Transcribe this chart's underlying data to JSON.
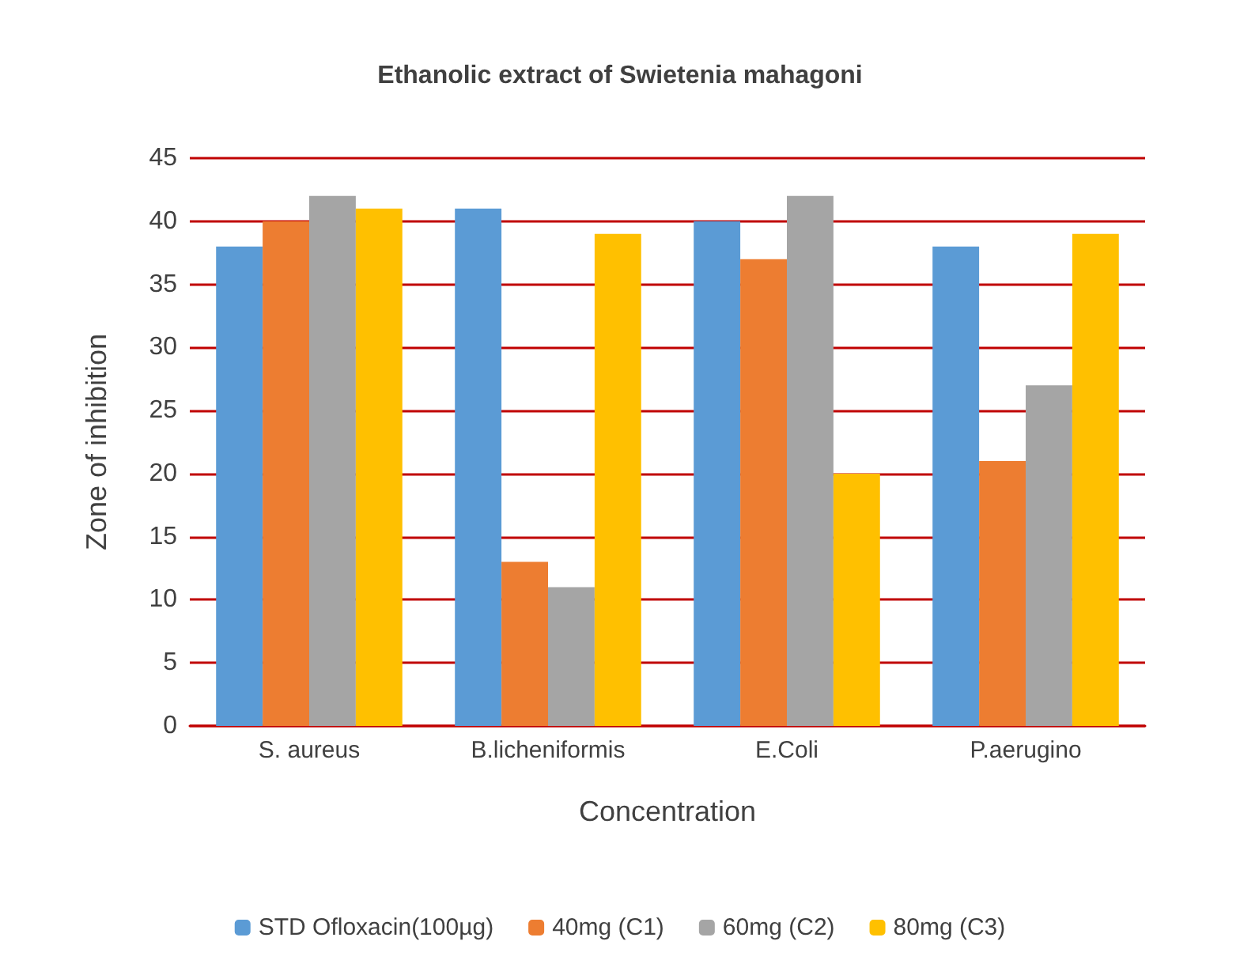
{
  "chart_data": {
    "type": "bar",
    "title": "Ethanolic extract of Swietenia mahagoni",
    "xlabel": "Concentration",
    "ylabel": "Zone of inhibition",
    "categories": [
      "S. aureus",
      "B.licheniformis",
      "E.Coli",
      "P.aerugino"
    ],
    "series": [
      {
        "name": "STD Ofloxacin(100µg)",
        "color": "#5b9bd5",
        "values": [
          38,
          41,
          40,
          38
        ]
      },
      {
        "name": "40mg (C1)",
        "color": "#ed7d31",
        "values": [
          40,
          13,
          37,
          21
        ]
      },
      {
        "name": "60mg (C2)",
        "color": "#a5a5a5",
        "values": [
          42,
          11,
          42,
          27
        ]
      },
      {
        "name": "80mg (C3)",
        "color": "#ffc000",
        "values": [
          41,
          39,
          20,
          39
        ]
      }
    ],
    "ylim": [
      0,
      45
    ],
    "yticks": [
      0,
      5,
      10,
      15,
      20,
      25,
      30,
      35,
      40,
      45
    ],
    "grid": "y",
    "legend": "bottom"
  }
}
